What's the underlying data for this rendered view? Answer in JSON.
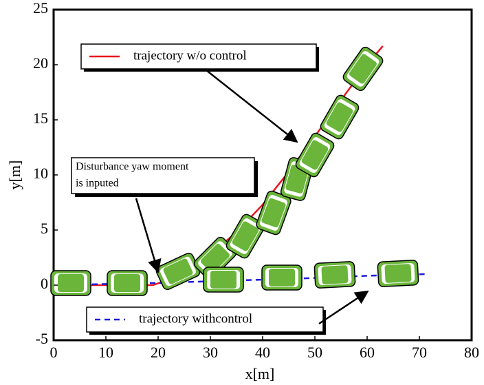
{
  "chart_data": {
    "type": "line",
    "xlabel": "x[m]",
    "ylabel": "y[m]",
    "xlim": [
      0,
      80
    ],
    "xticks": [
      0,
      10,
      20,
      30,
      40,
      50,
      60,
      70,
      80
    ],
    "ylim": [
      -5,
      25
    ],
    "yticks": [
      -5,
      0,
      5,
      10,
      15,
      20,
      25
    ],
    "annotation": [
      "Disturbance yaw moment",
      "is inputed"
    ],
    "series": [
      {
        "name": "trajectory w/o control",
        "color": "#e8141c",
        "linestyle": "solid",
        "x": [
          0,
          10,
          19,
          22,
          25,
          30,
          35,
          40,
          45,
          50,
          55,
          60,
          63
        ],
        "values": [
          0,
          0,
          0,
          0.5,
          1.3,
          2.8,
          4.8,
          7.3,
          10.3,
          13.5,
          16.8,
          20,
          21.7
        ]
      },
      {
        "name": "trajectory withcontrol",
        "color": "#1a1adc",
        "linestyle": "dashed",
        "x": [
          0,
          20,
          30,
          40,
          50,
          60,
          71
        ],
        "values": [
          0,
          0.2,
          0.35,
          0.5,
          0.65,
          0.85,
          1.0
        ]
      }
    ]
  }
}
